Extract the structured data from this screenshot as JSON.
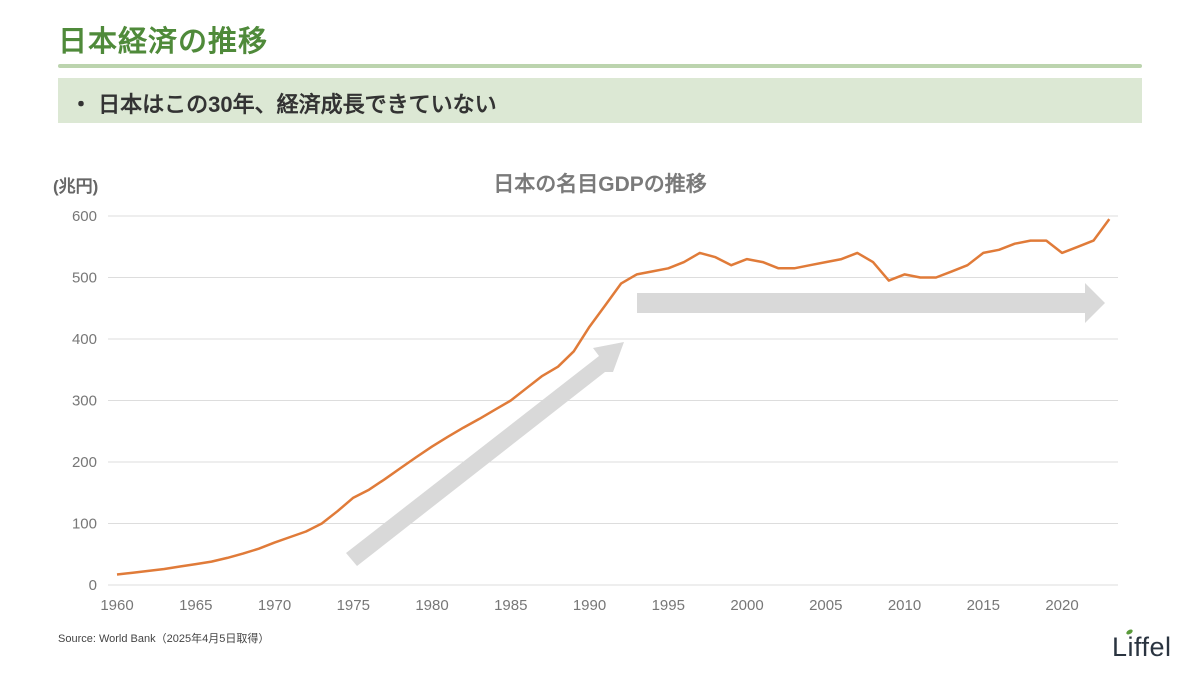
{
  "slide": {
    "title": "日本経済の推移",
    "bullet": "・ 日本はこの30年、経済成長できていない",
    "source": "Source: World Bank（2025年4月5日取得）",
    "logo": "Liffel",
    "colors": {
      "title_green": "#4f8a3a",
      "rule": "#bcd4ae",
      "bullet_bg": "#dce8d4",
      "line": "#e07b39",
      "arrow": "#d9d9d9"
    }
  },
  "chart_data": {
    "type": "line",
    "title": "日本の名目GDPの推移",
    "xlabel": "",
    "ylabel": "(兆円)",
    "ylim": [
      0,
      600
    ],
    "yticks": [
      0,
      100,
      200,
      300,
      400,
      500,
      600
    ],
    "xticks": [
      1960,
      1965,
      1970,
      1975,
      1980,
      1985,
      1990,
      1995,
      2000,
      2005,
      2010,
      2015,
      2020
    ],
    "grid": true,
    "legend": "none",
    "x": [
      1960,
      1961,
      1962,
      1963,
      1964,
      1965,
      1966,
      1967,
      1968,
      1969,
      1970,
      1971,
      1972,
      1973,
      1974,
      1975,
      1976,
      1977,
      1978,
      1979,
      1980,
      1981,
      1982,
      1983,
      1984,
      1985,
      1986,
      1987,
      1988,
      1989,
      1990,
      1991,
      1992,
      1993,
      1994,
      1995,
      1996,
      1997,
      1998,
      1999,
      2000,
      2001,
      2002,
      2003,
      2004,
      2005,
      2006,
      2007,
      2008,
      2009,
      2010,
      2011,
      2012,
      2013,
      2014,
      2015,
      2016,
      2017,
      2018,
      2019,
      2020,
      2021,
      2022,
      2023
    ],
    "series": [
      {
        "name": "名目GDP",
        "values": [
          17,
          20,
          23,
          26,
          30,
          34,
          38,
          44,
          51,
          59,
          69,
          78,
          87,
          100,
          120,
          142,
          155,
          172,
          190,
          208,
          225,
          241,
          256,
          270,
          285,
          300,
          320,
          340,
          355,
          380,
          420,
          455,
          490,
          505,
          510,
          515,
          525,
          540,
          533,
          520,
          530,
          525,
          515,
          515,
          520,
          525,
          530,
          540,
          525,
          495,
          505,
          500,
          500,
          510,
          520,
          540,
          545,
          555,
          560,
          560,
          540,
          550,
          560,
          595
        ]
      }
    ],
    "annotations": [
      {
        "type": "arrow",
        "description": "diagonal upward arrow 1975-1991",
        "from": [
          1975,
          45
        ],
        "to": [
          1992,
          395
        ]
      },
      {
        "type": "arrow",
        "description": "horizontal arrow 1993-2023 (stagnation)",
        "from": [
          1993,
          460
        ],
        "to": [
          2023,
          460
        ]
      }
    ]
  }
}
